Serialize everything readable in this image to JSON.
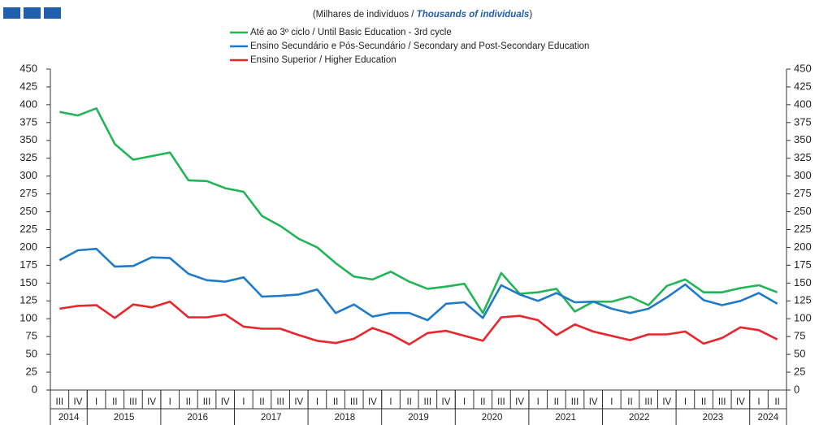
{
  "chart_data": {
    "type": "line",
    "subtitle": [
      "(Milhares de indivíduos / ",
      "Thousands of individuals",
      ")"
    ],
    "categories": [
      "III",
      "IV",
      "I",
      "II",
      "III",
      "IV",
      "I",
      "II",
      "III",
      "IV",
      "I",
      "II",
      "III",
      "IV",
      "I",
      "II",
      "III",
      "IV",
      "I",
      "II",
      "III",
      "IV",
      "I",
      "II",
      "III",
      "IV",
      "I",
      "II",
      "III",
      "IV",
      "I",
      "II",
      "III",
      "IV",
      "I",
      "II",
      "III",
      "IV",
      "I",
      "II"
    ],
    "years": [
      "2014",
      "2015",
      "2016",
      "2017",
      "2018",
      "2019",
      "2020",
      "2021",
      "2022",
      "2023",
      "2024"
    ],
    "series": [
      {
        "name": "Até ao 3º ciclo / Until Basic Education - 3rd cycle",
        "color": "#22b455",
        "values": [
          390,
          385,
          395,
          345,
          323,
          328,
          333,
          294,
          293,
          283,
          278,
          244,
          230,
          212,
          200,
          178,
          159,
          155,
          166,
          152,
          142,
          145,
          149,
          108,
          164,
          135,
          137,
          142,
          110,
          124,
          124,
          131,
          119,
          146,
          155,
          137,
          137,
          143,
          147,
          137
        ]
      },
      {
        "name": "Ensino Secundário e Pós-Secundário / Secondary and Post-Secondary Education",
        "color": "#1f7ac8",
        "values": [
          182,
          196,
          198,
          173,
          174,
          186,
          185,
          163,
          154,
          152,
          158,
          131,
          132,
          134,
          141,
          108,
          120,
          103,
          108,
          108,
          98,
          121,
          123,
          101,
          147,
          134,
          125,
          136,
          123,
          124,
          114,
          108,
          114,
          130,
          148,
          126,
          119,
          125,
          136,
          121
        ]
      },
      {
        "name": "Ensino Superior / Higher Education",
        "color": "#e8262b",
        "values": [
          114,
          118,
          119,
          101,
          120,
          116,
          124,
          102,
          102,
          106,
          89,
          86,
          86,
          77,
          69,
          66,
          72,
          87,
          78,
          64,
          80,
          83,
          76,
          69,
          102,
          104,
          98,
          77,
          92,
          82,
          76,
          70,
          78,
          78,
          82,
          65,
          73,
          88,
          84,
          71
        ]
      }
    ],
    "ylim": [
      0,
      450
    ],
    "yticks": [
      0,
      25,
      50,
      75,
      100,
      125,
      150,
      175,
      200,
      225,
      250,
      275,
      300,
      325,
      350,
      375,
      400,
      425,
      450
    ],
    "y2lim": [
      0,
      450
    ],
    "y2ticks": [
      0,
      25,
      50,
      75,
      100,
      125,
      150,
      175,
      200,
      225,
      250,
      275,
      300,
      325,
      350,
      375,
      400,
      425,
      450
    ]
  }
}
